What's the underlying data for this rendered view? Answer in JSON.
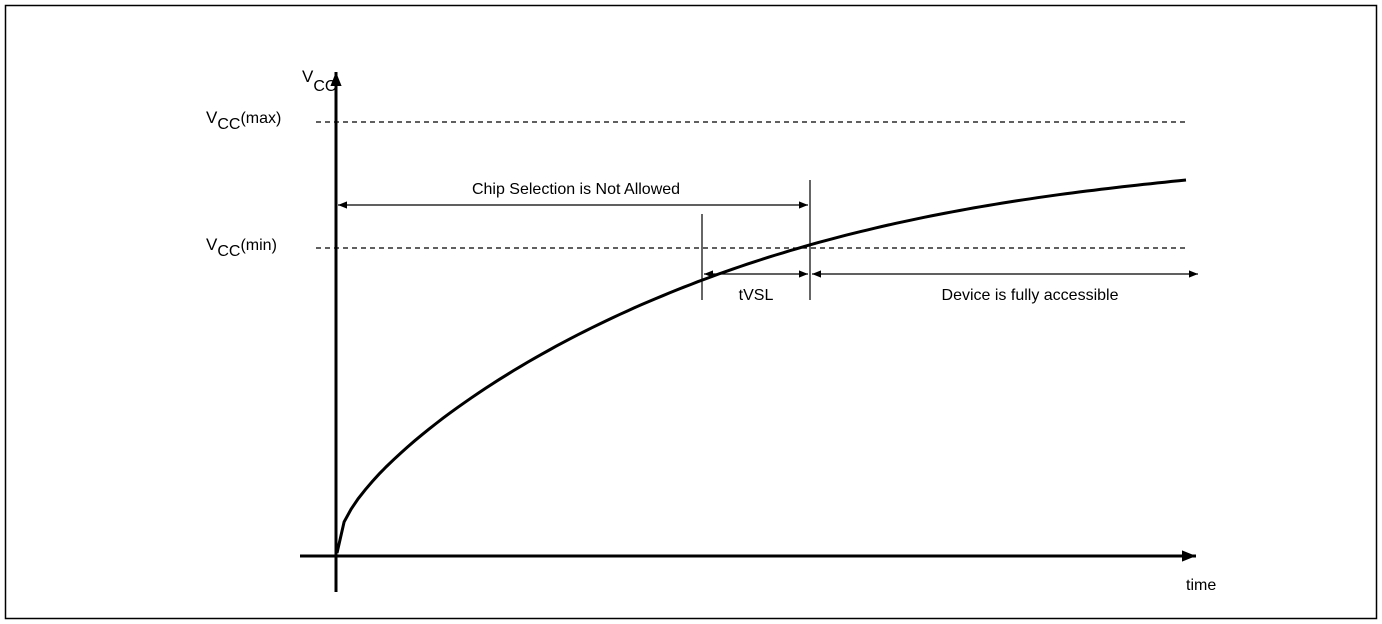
{
  "diagram": {
    "y_axis": {
      "symbol": "V",
      "subscript": "CC"
    },
    "x_axis": {
      "label": "time"
    },
    "levels": {
      "vcc_max": {
        "symbol": "V",
        "subscript": "CC",
        "suffix": "(max)"
      },
      "vcc_min": {
        "symbol": "V",
        "subscript": "CC",
        "suffix": "(min)"
      }
    },
    "annotations": {
      "chip_selection": "Chip Selection is Not Allowed",
      "tvsl": "tVSL",
      "fully_accessible": "Device is fully accessible"
    }
  }
}
